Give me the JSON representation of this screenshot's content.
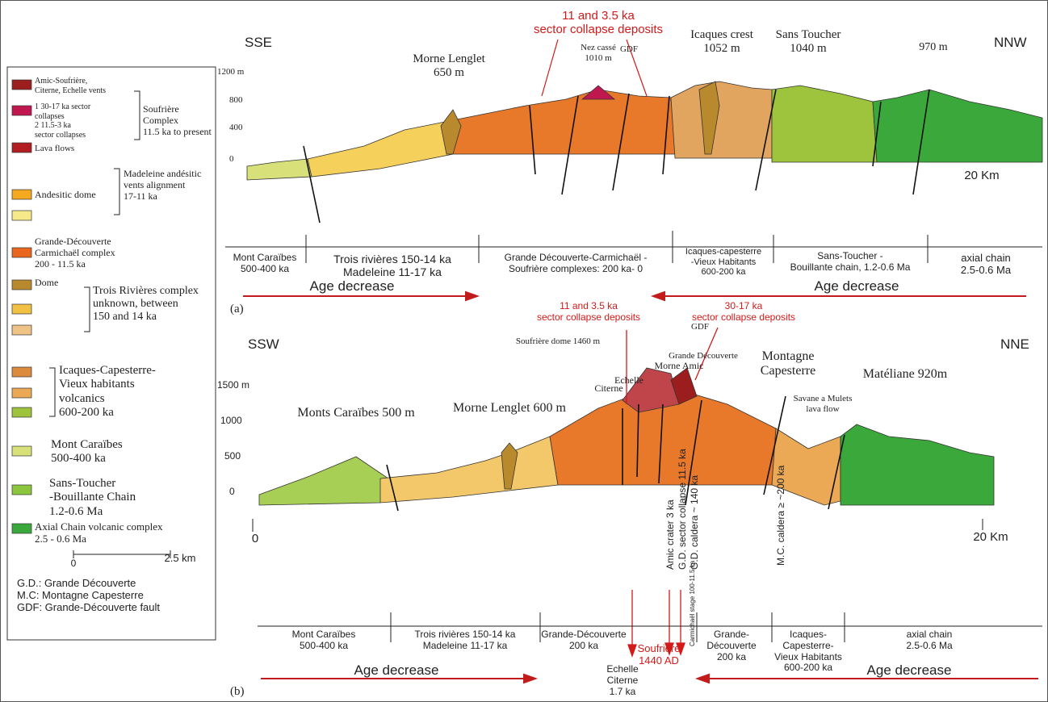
{
  "legend": {
    "vents": [
      "Amic-Soufrière,",
      "Citerne, Echelle vents"
    ],
    "collapses": [
      "1  30-17 ka sector",
      "collapses",
      "2  11.5-3 ka",
      "sector collapses"
    ],
    "lava": "Lava flows",
    "soufriere_group": [
      "Soufrière",
      "Complex",
      "11.5 ka to present"
    ],
    "andesitic_dome": "Andesitic dome",
    "madeleine_group": [
      "Madeleine andésitic",
      "vents alignment",
      "17-11 ka"
    ],
    "grande_decouverte": [
      "Grande-Découverte",
      "Carmichaël complex",
      "200 - 11.5 ka"
    ],
    "dome": "Dome",
    "trois_rivieres_group": [
      "Trois Rivières complex",
      "unknown, between",
      "150 and 14 ka"
    ],
    "icaques": [
      "Icaques-Capesterre-",
      "Vieux habitants",
      "volcanics",
      "600-200 ka"
    ],
    "mont_caraibes": [
      "Mont Caraïbes",
      "500-400 ka"
    ],
    "sans_toucher": [
      "Sans-Toucher",
      "-Bouillante Chain",
      "1.2-0.6 Ma"
    ],
    "axial": [
      "Axial Chain volcanic complex",
      "2.5 - 0.6 Ma"
    ],
    "scale_start": "0",
    "scale_end": "2.5  km",
    "abbreviations": [
      "G.D.: Grande Découverte",
      "M.C: Montagne Capesterre",
      "GDF: Grande-Découverte fault"
    ]
  },
  "section_a": {
    "label": "(a)",
    "left_dir": "SSE",
    "right_dir": "NNW",
    "elevation_labels": [
      "1200 m",
      "800",
      "400",
      "0"
    ],
    "collapse_note": [
      "11 and 3.5 ka",
      "sector collapse deposits"
    ],
    "morne_lenglet": [
      "Morne Lenglet",
      "650 m"
    ],
    "nez_casse": [
      "Nez cassé",
      "1010 m"
    ],
    "gdf": "GDF",
    "icaques_crest": [
      "Icaques crest",
      "1052 m"
    ],
    "sans_toucher": [
      "Sans Toucher",
      "1040 m"
    ],
    "peak_970": "970 m",
    "distance": "20 Km",
    "units": [
      [
        "Mont Caraïbes",
        "500-400 ka"
      ],
      [
        "Trois rivières 150-14 ka",
        "Madeleine     11-17 ka"
      ],
      [
        "Grande Découverte-Carmichaël -",
        "Soufrière complexes: 200 ka- 0"
      ],
      [
        "Icaques-capesterre",
        "-Vieux Habitants",
        "600-200 ka"
      ],
      [
        "Sans-Toucher -",
        "Bouillante chain, 1.2-0.6 Ma"
      ],
      [
        "axial chain",
        "2.5-0.6 Ma"
      ]
    ],
    "age_left": "Age decrease",
    "age_right": "Age decrease"
  },
  "section_b": {
    "label": "(b)",
    "left_dir": "SSW",
    "right_dir": "NNE",
    "elevation_labels": [
      "1500 m",
      "1000",
      "500",
      "0"
    ],
    "collapse_note_1": [
      "11 and 3.5 ka",
      "sector collapse deposits"
    ],
    "collapse_note_2": [
      "30-17 ka",
      "sector collapse deposits"
    ],
    "soufriere_dome": "Soufrière dome 1460 m",
    "gdf": "GDF",
    "grande_decouverte": "Grande Découverte",
    "morne_amic": "Morne Amic",
    "echelle": "Echelle",
    "citerne": "Citerne",
    "montagne_capesterre": [
      "Montagne",
      "Capesterre"
    ],
    "mateliane": "Matéliane 920m",
    "savane": [
      "Savane a Mulets",
      "lava flow"
    ],
    "monts_caraibes": "Monts Caraïbes 500 m",
    "morne_lenglet": "Morne Lenglet 600 m",
    "distance_start": "0",
    "distance": "20 Km",
    "amic_crater": "Amic crater 3 ka",
    "gd_collapse": "G.D. sector collapse 11.5 ka",
    "gd_caldera": "G.D. caldera ~ 140 ka",
    "mc_caldera": "M.C. caldera ≥ ~200 ka",
    "carmichael": "Carmichaël stage 100-11.5 ka",
    "soufriere_date": [
      "Soufrière",
      "1440 AD"
    ],
    "echelle_citerne": [
      "Echelle",
      "Citerne",
      "1.7 ka"
    ],
    "units": [
      [
        "Mont Caraïbes",
        "500-400 ka"
      ],
      [
        "Trois rivières 150-14 ka",
        "Madeleine     11-17 ka"
      ],
      [
        "Grande-Découverte",
        "200 ka"
      ],
      [
        "Grande-",
        "Découverte",
        "200 ka"
      ],
      [
        "Icaques-",
        "Capesterre-",
        "Vieux Habitants",
        "600-200 ka"
      ],
      [
        "axial chain",
        "2.5-0.6 Ma"
      ]
    ],
    "age_left": "Age decrease",
    "age_right": "Age decrease"
  }
}
